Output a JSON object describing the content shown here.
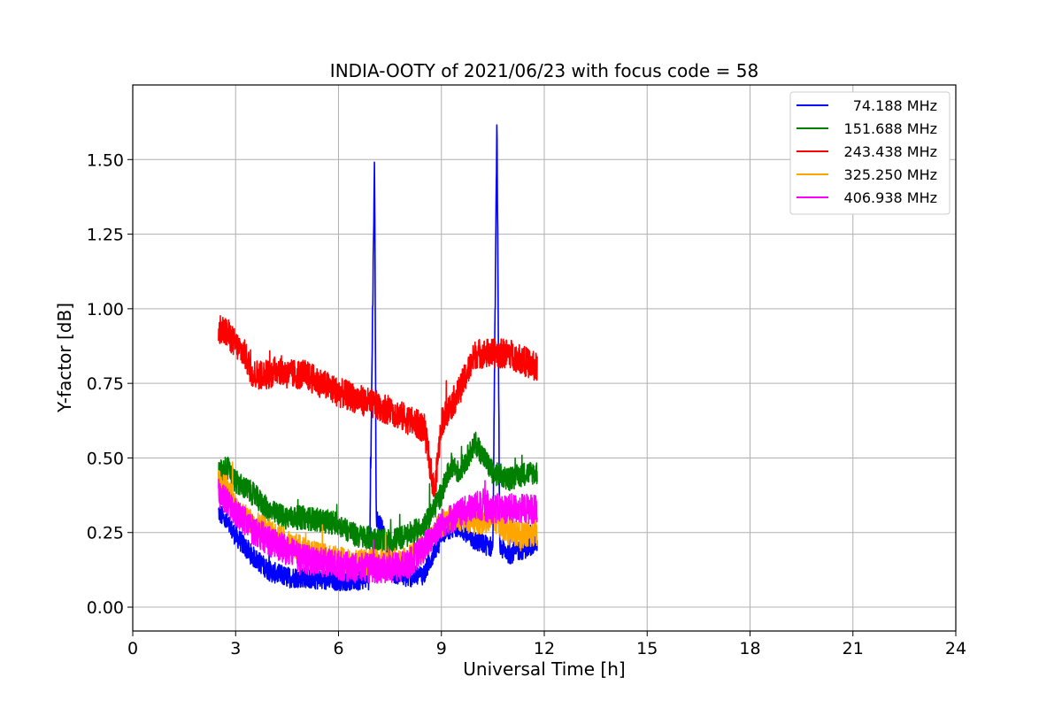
{
  "chart_data": {
    "type": "line",
    "title": "INDIA-OOTY of 2021/06/23 with focus code = 58",
    "xlabel": "Universal Time [h]",
    "ylabel": "Y-factor [dB]",
    "xlim": [
      0,
      24
    ],
    "ylim": [
      -0.08,
      1.75
    ],
    "xticks": [
      0,
      3,
      6,
      9,
      12,
      15,
      18,
      21,
      24
    ],
    "yticks": [
      0.0,
      0.25,
      0.5,
      0.75,
      1.0,
      1.25,
      1.5
    ],
    "ytick_labels": [
      "0.00",
      "0.25",
      "0.50",
      "0.75",
      "1.00",
      "1.25",
      "1.50"
    ],
    "grid": true,
    "legend_position": "top-right",
    "series": [
      {
        "name": "74.188 MHz",
        "color": "#0000ff",
        "x": [
          2.5,
          2.75,
          3.0,
          3.5,
          4.0,
          4.5,
          5.0,
          5.5,
          6.0,
          6.5,
          6.9,
          7.05,
          7.1,
          7.3,
          7.5,
          8.0,
          8.5,
          9.0,
          9.5,
          10.0,
          10.5,
          10.62,
          10.7,
          11.0,
          11.5,
          11.8
        ],
        "y": [
          0.32,
          0.28,
          0.24,
          0.17,
          0.12,
          0.1,
          0.1,
          0.09,
          0.09,
          0.09,
          0.1,
          1.51,
          0.3,
          0.25,
          0.12,
          0.1,
          0.11,
          0.25,
          0.27,
          0.22,
          0.2,
          1.64,
          0.2,
          0.18,
          0.2,
          0.22
        ]
      },
      {
        "name": "151.688 MHz",
        "color": "#008000",
        "x": [
          2.5,
          2.75,
          3.0,
          3.5,
          4.0,
          4.5,
          5.0,
          5.5,
          6.0,
          6.5,
          7.0,
          7.5,
          8.0,
          8.5,
          9.0,
          9.3,
          9.5,
          10.0,
          10.5,
          11.0,
          11.5,
          11.8
        ],
        "y": [
          0.45,
          0.47,
          0.42,
          0.38,
          0.32,
          0.3,
          0.3,
          0.29,
          0.28,
          0.24,
          0.23,
          0.22,
          0.24,
          0.27,
          0.38,
          0.48,
          0.45,
          0.55,
          0.45,
          0.43,
          0.45,
          0.45
        ]
      },
      {
        "name": "243.438 MHz",
        "color": "#ff0000",
        "x": [
          2.5,
          2.75,
          3.0,
          3.25,
          3.5,
          4.0,
          4.25,
          4.5,
          5.0,
          5.5,
          6.0,
          6.5,
          7.0,
          7.5,
          8.0,
          8.5,
          8.8,
          9.0,
          9.5,
          10.0,
          10.5,
          11.0,
          11.5,
          11.8
        ],
        "y": [
          0.93,
          0.92,
          0.88,
          0.85,
          0.78,
          0.78,
          0.8,
          0.78,
          0.78,
          0.75,
          0.72,
          0.7,
          0.68,
          0.66,
          0.63,
          0.6,
          0.38,
          0.62,
          0.72,
          0.85,
          0.85,
          0.85,
          0.82,
          0.8
        ]
      },
      {
        "name": "325.250 MHz",
        "color": "#ffa500",
        "x": [
          2.5,
          2.75,
          3.0,
          3.5,
          4.0,
          4.5,
          5.0,
          5.5,
          6.0,
          6.5,
          7.0,
          7.5,
          8.0,
          8.5,
          9.0,
          9.5,
          10.0,
          10.5,
          11.0,
          11.5,
          11.8
        ],
        "y": [
          0.42,
          0.4,
          0.33,
          0.28,
          0.25,
          0.22,
          0.19,
          0.17,
          0.16,
          0.15,
          0.15,
          0.15,
          0.16,
          0.2,
          0.28,
          0.3,
          0.28,
          0.3,
          0.25,
          0.24,
          0.25
        ]
      },
      {
        "name": "406.938 MHz",
        "color": "#ff00ff",
        "x": [
          2.5,
          2.75,
          3.0,
          3.5,
          4.0,
          4.5,
          5.0,
          5.5,
          6.0,
          6.5,
          7.0,
          7.5,
          8.0,
          8.5,
          9.0,
          9.5,
          10.0,
          10.5,
          11.0,
          11.5,
          11.8
        ],
        "y": [
          0.38,
          0.35,
          0.32,
          0.26,
          0.22,
          0.19,
          0.16,
          0.15,
          0.14,
          0.13,
          0.13,
          0.13,
          0.14,
          0.2,
          0.28,
          0.31,
          0.34,
          0.33,
          0.33,
          0.33,
          0.33
        ]
      }
    ]
  }
}
